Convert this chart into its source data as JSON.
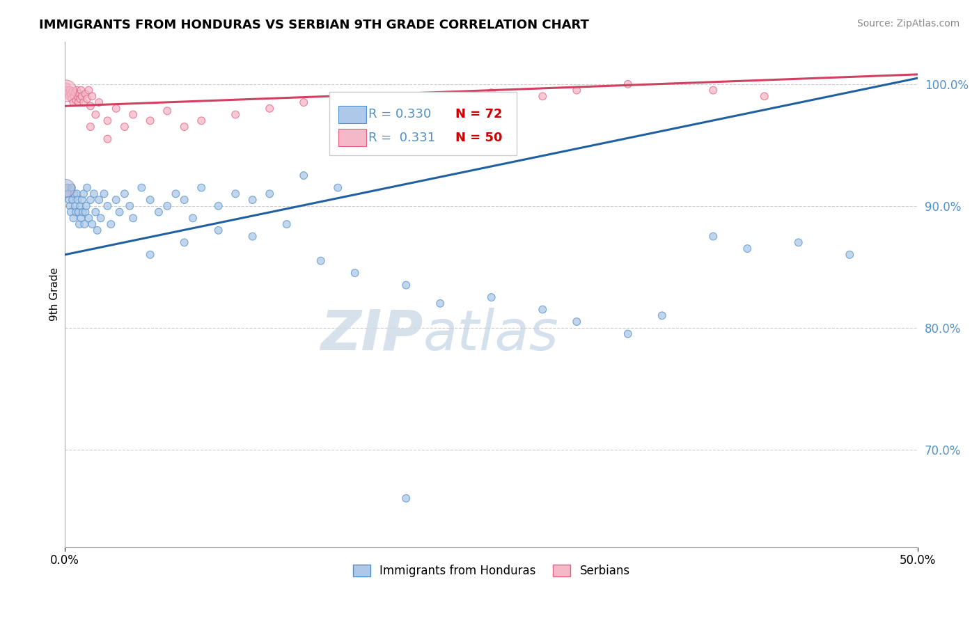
{
  "title": "IMMIGRANTS FROM HONDURAS VS SERBIAN 9TH GRADE CORRELATION CHART",
  "source": "Source: ZipAtlas.com",
  "ylabel": "9th Grade",
  "xlim": [
    0.0,
    50.0
  ],
  "ylim": [
    62.0,
    103.5
  ],
  "ytick_positions": [
    70.0,
    80.0,
    90.0,
    100.0
  ],
  "ytick_labels": [
    "70.0%",
    "80.0%",
    "90.0%",
    "100.0%"
  ],
  "xtick_positions": [
    0.0,
    50.0
  ],
  "xtick_labels": [
    "0.0%",
    "50.0%"
  ],
  "legend_label_blue": "Immigrants from Honduras",
  "legend_label_pink": "Serbians",
  "blue_color": "#adc8e8",
  "pink_color": "#f5b8c8",
  "blue_edge_color": "#5090c8",
  "pink_edge_color": "#e06080",
  "blue_line_color": "#2060a0",
  "pink_line_color": "#d04060",
  "watermark_zip": "ZIP",
  "watermark_atlas": "atlas",
  "blue_trend": [
    0.0,
    86.0,
    50.0,
    100.5
  ],
  "pink_trend": [
    0.0,
    98.2,
    50.0,
    100.8
  ],
  "blue_points": [
    [
      0.15,
      91.5
    ],
    [
      0.2,
      91.0
    ],
    [
      0.25,
      90.5
    ],
    [
      0.3,
      90.0
    ],
    [
      0.35,
      89.5
    ],
    [
      0.4,
      91.5
    ],
    [
      0.45,
      90.5
    ],
    [
      0.5,
      89.0
    ],
    [
      0.55,
      91.0
    ],
    [
      0.6,
      90.0
    ],
    [
      0.65,
      89.5
    ],
    [
      0.7,
      91.0
    ],
    [
      0.75,
      90.5
    ],
    [
      0.8,
      89.5
    ],
    [
      0.85,
      88.5
    ],
    [
      0.9,
      90.0
    ],
    [
      0.95,
      89.0
    ],
    [
      1.0,
      90.5
    ],
    [
      1.05,
      89.5
    ],
    [
      1.1,
      91.0
    ],
    [
      1.15,
      88.5
    ],
    [
      1.2,
      89.5
    ],
    [
      1.25,
      90.0
    ],
    [
      1.3,
      91.5
    ],
    [
      1.4,
      89.0
    ],
    [
      1.5,
      90.5
    ],
    [
      1.6,
      88.5
    ],
    [
      1.7,
      91.0
    ],
    [
      1.8,
      89.5
    ],
    [
      1.9,
      88.0
    ],
    [
      2.0,
      90.5
    ],
    [
      2.1,
      89.0
    ],
    [
      2.3,
      91.0
    ],
    [
      2.5,
      90.0
    ],
    [
      2.7,
      88.5
    ],
    [
      3.0,
      90.5
    ],
    [
      3.2,
      89.5
    ],
    [
      3.5,
      91.0
    ],
    [
      3.8,
      90.0
    ],
    [
      4.0,
      89.0
    ],
    [
      4.5,
      91.5
    ],
    [
      5.0,
      90.5
    ],
    [
      5.5,
      89.5
    ],
    [
      6.0,
      90.0
    ],
    [
      6.5,
      91.0
    ],
    [
      7.0,
      90.5
    ],
    [
      7.5,
      89.0
    ],
    [
      8.0,
      91.5
    ],
    [
      9.0,
      90.0
    ],
    [
      10.0,
      91.0
    ],
    [
      11.0,
      90.5
    ],
    [
      12.0,
      91.0
    ],
    [
      14.0,
      92.5
    ],
    [
      16.0,
      91.5
    ],
    [
      5.0,
      86.0
    ],
    [
      7.0,
      87.0
    ],
    [
      9.0,
      88.0
    ],
    [
      11.0,
      87.5
    ],
    [
      13.0,
      88.5
    ],
    [
      15.0,
      85.5
    ],
    [
      17.0,
      84.5
    ],
    [
      20.0,
      83.5
    ],
    [
      22.0,
      82.0
    ],
    [
      25.0,
      82.5
    ],
    [
      28.0,
      81.5
    ],
    [
      30.0,
      80.5
    ],
    [
      33.0,
      79.5
    ],
    [
      35.0,
      81.0
    ],
    [
      38.0,
      87.5
    ],
    [
      40.0,
      86.5
    ],
    [
      43.0,
      87.0
    ],
    [
      46.0,
      86.0
    ],
    [
      20.0,
      66.0
    ]
  ],
  "blue_sizes": [
    60,
    60,
    60,
    60,
    60,
    60,
    60,
    60,
    60,
    60,
    60,
    60,
    60,
    60,
    60,
    60,
    60,
    60,
    60,
    60,
    60,
    60,
    60,
    60,
    60,
    60,
    60,
    60,
    60,
    60,
    60,
    60,
    60,
    60,
    60,
    60,
    60,
    60,
    60,
    60,
    60,
    60,
    60,
    60,
    60,
    60,
    60,
    60,
    60,
    60,
    60,
    60,
    60,
    60,
    60,
    60,
    60,
    60,
    60,
    60,
    60,
    60,
    60,
    60,
    60,
    60,
    60,
    60,
    60,
    60,
    60,
    60,
    60
  ],
  "pink_points": [
    [
      0.1,
      99.8
    ],
    [
      0.15,
      99.5
    ],
    [
      0.2,
      99.3
    ],
    [
      0.25,
      99.0
    ],
    [
      0.3,
      99.5
    ],
    [
      0.35,
      99.2
    ],
    [
      0.4,
      98.8
    ],
    [
      0.45,
      99.4
    ],
    [
      0.5,
      98.5
    ],
    [
      0.55,
      99.0
    ],
    [
      0.6,
      99.3
    ],
    [
      0.65,
      98.7
    ],
    [
      0.7,
      99.5
    ],
    [
      0.75,
      99.0
    ],
    [
      0.8,
      98.5
    ],
    [
      0.85,
      99.2
    ],
    [
      0.9,
      98.8
    ],
    [
      0.95,
      99.5
    ],
    [
      1.0,
      99.0
    ],
    [
      1.1,
      98.5
    ],
    [
      1.2,
      99.2
    ],
    [
      1.3,
      98.8
    ],
    [
      1.4,
      99.5
    ],
    [
      1.5,
      98.2
    ],
    [
      1.6,
      99.0
    ],
    [
      1.8,
      97.5
    ],
    [
      2.0,
      98.5
    ],
    [
      2.5,
      97.0
    ],
    [
      3.0,
      98.0
    ],
    [
      3.5,
      96.5
    ],
    [
      4.0,
      97.5
    ],
    [
      5.0,
      97.0
    ],
    [
      6.0,
      97.8
    ],
    [
      7.0,
      96.5
    ],
    [
      8.0,
      97.0
    ],
    [
      10.0,
      97.5
    ],
    [
      12.0,
      98.0
    ],
    [
      14.0,
      98.5
    ],
    [
      16.0,
      97.0
    ],
    [
      18.0,
      97.5
    ],
    [
      20.0,
      98.0
    ],
    [
      25.0,
      99.3
    ],
    [
      28.0,
      99.0
    ],
    [
      30.0,
      99.5
    ],
    [
      33.0,
      100.0
    ],
    [
      38.0,
      99.5
    ],
    [
      41.0,
      99.0
    ],
    [
      1.5,
      96.5
    ],
    [
      2.5,
      95.5
    ],
    [
      0.05,
      99.5
    ]
  ],
  "pink_sizes": [
    60,
    60,
    60,
    60,
    60,
    60,
    60,
    60,
    60,
    60,
    60,
    60,
    60,
    60,
    60,
    60,
    60,
    60,
    60,
    60,
    60,
    60,
    60,
    60,
    60,
    60,
    60,
    60,
    60,
    60,
    60,
    60,
    60,
    60,
    60,
    60,
    60,
    60,
    60,
    60,
    60,
    60,
    60,
    60,
    60,
    60,
    60,
    60,
    60,
    500
  ],
  "large_pink_x": 0.05,
  "large_pink_y": 99.5,
  "large_pink_size": 500,
  "large_blue_x": 0.05,
  "large_blue_y": 91.5,
  "large_blue_size": 350
}
